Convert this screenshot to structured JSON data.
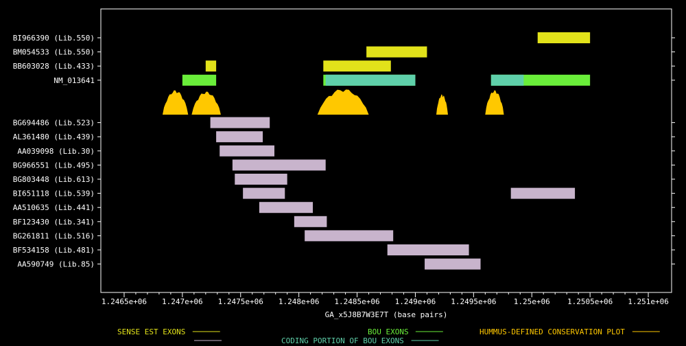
{
  "chart_data": {
    "type": "gene-track",
    "xlabel": "GA_x5J8B7W3E7T (base pairs)",
    "xlim": [
      1246300,
      1251200
    ],
    "xticks": [
      1246500,
      1247000,
      1247500,
      1248000,
      1248500,
      1249000,
      1249500,
      1250000,
      1250500,
      1251000
    ],
    "xtick_labels": [
      "1.2465e+06",
      "1.247e+06",
      "1.2475e+06",
      "1.248e+06",
      "1.2485e+06",
      "1.249e+06",
      "1.2495e+06",
      "1.25e+06",
      "1.2505e+06",
      "1.251e+06"
    ],
    "colors": {
      "background": "#000000",
      "axis": "#ffffff",
      "sense_est": "#e2e21a",
      "bou_exon": "#6aee3a",
      "coding_bou": "#5fd0aa",
      "conservation": "#ffc800",
      "other_est": "#c8b4cc"
    },
    "legend": [
      {
        "label": "SENSE EST EXONS",
        "color": "#e2e21a"
      },
      {
        "label": "BOU EXONS",
        "color": "#6aee3a"
      },
      {
        "label": "HUMMUS-DEFINED CONSERVATION PLOT",
        "color": "#ffc800"
      },
      {
        "label": "",
        "color": "#c8b4cc"
      },
      {
        "label": "CODING PORTION OF BOU EXONS",
        "color": "#5fd0aa"
      }
    ],
    "tracks": [
      {
        "label": "BI966390 (Lib.550)",
        "kind": "sense_est",
        "row": 0,
        "segments": [
          [
            1250050,
            1250500
          ]
        ]
      },
      {
        "label": "BM054533 (Lib.550)",
        "kind": "sense_est",
        "row": 1,
        "segments": [
          [
            1248580,
            1249100
          ]
        ]
      },
      {
        "label": "BB603028 (Lib.433)",
        "kind": "sense_est",
        "row": 2,
        "segments": [
          [
            1247200,
            1247290
          ],
          [
            1248210,
            1248790
          ]
        ]
      },
      {
        "label": "NM_013641",
        "kind": "bou",
        "row": 3,
        "segments": [
          [
            1247000,
            1247290
          ],
          [
            1248210,
            1249000
          ],
          [
            1249650,
            1250500
          ]
        ],
        "coding": [
          [
            1248230,
            1249000
          ],
          [
            1249650,
            1249930
          ]
        ]
      },
      {
        "label": "BG694486 (Lib.523)",
        "kind": "other_est",
        "row": 6,
        "segments": [
          [
            1247240,
            1247750
          ]
        ]
      },
      {
        "label": "AL361480 (Lib.439)",
        "kind": "other_est",
        "row": 7,
        "segments": [
          [
            1247290,
            1247690
          ]
        ]
      },
      {
        "label": "AA039098 (Lib.30)",
        "kind": "other_est",
        "row": 8,
        "segments": [
          [
            1247320,
            1247790
          ]
        ]
      },
      {
        "label": "BG966551 (Lib.495)",
        "kind": "other_est",
        "row": 9,
        "segments": [
          [
            1247430,
            1248230
          ]
        ]
      },
      {
        "label": "BG803448 (Lib.613)",
        "kind": "other_est",
        "row": 10,
        "segments": [
          [
            1247450,
            1247900
          ]
        ]
      },
      {
        "label": "BI651118 (Lib.539)",
        "kind": "other_est",
        "row": 11,
        "segments": [
          [
            1247520,
            1247880
          ],
          [
            1249820,
            1250370
          ]
        ]
      },
      {
        "label": "AA510635 (Lib.441)",
        "kind": "other_est",
        "row": 12,
        "segments": [
          [
            1247660,
            1248120
          ]
        ]
      },
      {
        "label": "BF123430 (Lib.341)",
        "kind": "other_est",
        "row": 13,
        "segments": [
          [
            1247960,
            1248240
          ]
        ]
      },
      {
        "label": "BG261811 (Lib.516)",
        "kind": "other_est",
        "row": 14,
        "segments": [
          [
            1248050,
            1248810
          ]
        ]
      },
      {
        "label": "BF534158 (Lib.481)",
        "kind": "other_est",
        "row": 15,
        "segments": [
          [
            1248760,
            1249460
          ]
        ]
      },
      {
        "label": "AA590749 (Lib.85)",
        "kind": "other_est",
        "row": 16,
        "segments": [
          [
            1249080,
            1249560
          ]
        ]
      }
    ],
    "conservation_peaks": [
      {
        "start": 1246830,
        "end": 1247050,
        "height": 0.9
      },
      {
        "start": 1247080,
        "end": 1247330,
        "height": 0.85
      },
      {
        "start": 1248160,
        "end": 1248600,
        "height": 0.95
      },
      {
        "start": 1249180,
        "end": 1249280,
        "height": 0.75
      },
      {
        "start": 1249600,
        "end": 1249760,
        "height": 0.9
      }
    ]
  }
}
